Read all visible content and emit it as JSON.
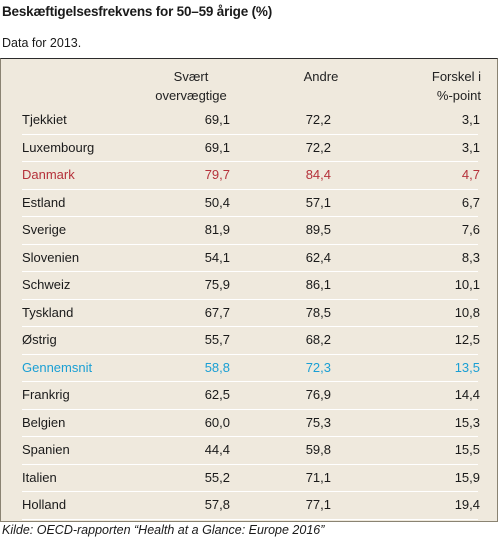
{
  "title": "Beskæftigelsesfrekvens for 50–59 årige (%)",
  "subtitle": "Data for 2013.",
  "colors": {
    "panel_background": "#efe9dd",
    "highlight_denmark": "#b5313a",
    "highlight_average": "#1a9fd4",
    "text": "#1a1a1a"
  },
  "table": {
    "headers": {
      "obese": "Svært\novervægtige",
      "others": "Andre",
      "difference": "Forskel i\n%-point"
    },
    "rows": [
      {
        "country": "Tjekkiet",
        "obese": "69,1",
        "others": "72,2",
        "difference": "3,1"
      },
      {
        "country": "Luxembourg",
        "obese": "69,1",
        "others": "72,2",
        "difference": "3,1"
      },
      {
        "country": "Danmark",
        "obese": "79,7",
        "others": "84,4",
        "difference": "4,7",
        "highlight": "denmark"
      },
      {
        "country": "Estland",
        "obese": "50,4",
        "others": "57,1",
        "difference": "6,7"
      },
      {
        "country": "Sverige",
        "obese": "81,9",
        "others": "89,5",
        "difference": "7,6"
      },
      {
        "country": "Slovenien",
        "obese": "54,1",
        "others": "62,4",
        "difference": "8,3"
      },
      {
        "country": "Schweiz",
        "obese": "75,9",
        "others": "86,1",
        "difference": "10,1"
      },
      {
        "country": "Tyskland",
        "obese": "67,7",
        "others": "78,5",
        "difference": "10,8"
      },
      {
        "country": "Østrig",
        "obese": "55,7",
        "others": "68,2",
        "difference": "12,5"
      },
      {
        "country": "Gennemsnit",
        "obese": "58,8",
        "others": "72,3",
        "difference": "13,5",
        "highlight": "average"
      },
      {
        "country": "Frankrig",
        "obese": "62,5",
        "others": "76,9",
        "difference": "14,4"
      },
      {
        "country": "Belgien",
        "obese": "60,0",
        "others": "75,3",
        "difference": "15,3"
      },
      {
        "country": "Spanien",
        "obese": "44,4",
        "others": "59,8",
        "difference": "15,5"
      },
      {
        "country": "Italien",
        "obese": "55,2",
        "others": "71,1",
        "difference": "15,9"
      },
      {
        "country": "Holland",
        "obese": "57,8",
        "others": "77,1",
        "difference": "19,4"
      }
    ]
  },
  "source": "Kilde: OECD-rapporten “Health at a Glance: Europe 2016”"
}
